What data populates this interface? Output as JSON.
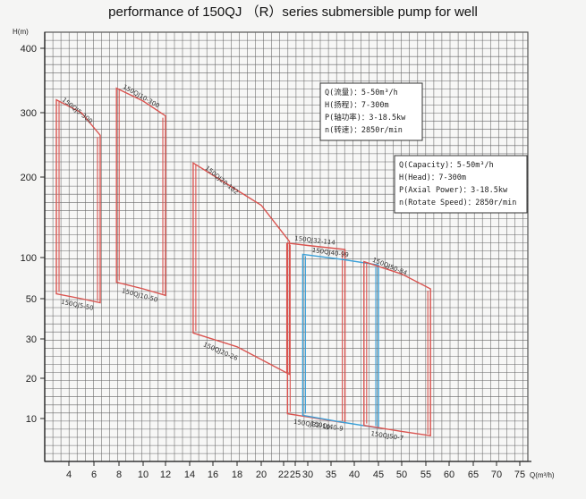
{
  "title": "performance of 150QJ （R）series submersible pump for well",
  "chart_data": {
    "type": "line",
    "ylabel": "H(m)",
    "xlabel": "Q(m³/h)",
    "x_ticks": [
      "4",
      "6",
      "8",
      "10",
      "12",
      "14",
      "16",
      "18",
      "20",
      "22",
      "25",
      "30",
      "35",
      "40",
      "45",
      "50",
      "55",
      "60",
      "65",
      "70",
      "75"
    ],
    "y_ticks": [
      "10",
      "20",
      "30",
      "50",
      "100",
      "200",
      "300",
      "400"
    ],
    "grid": true,
    "series": [
      {
        "name": "150QJ5-300",
        "color": "#d9534f",
        "points": [
          [
            3.0,
            320
          ],
          [
            5.0,
            300
          ],
          [
            6.5,
            265
          ],
          [
            6.5,
            48
          ],
          [
            5.0,
            50
          ],
          [
            3.0,
            56
          ]
        ],
        "label_upper": "150QJ5-300",
        "label_lower": "150QJ5-50"
      },
      {
        "name": "150QJ10-300",
        "color": "#d9534f",
        "points": [
          [
            7.8,
            338
          ],
          [
            10.0,
            318
          ],
          [
            12.0,
            295
          ],
          [
            12.0,
            54
          ],
          [
            10.0,
            62
          ],
          [
            7.8,
            70
          ]
        ],
        "label_upper": "150QJ10-300",
        "label_lower": "150QJ10-50"
      },
      {
        "name": "150QJ20-182",
        "color": "#d9534f",
        "points": [
          [
            14.3,
            222
          ],
          [
            20.0,
            165
          ],
          [
            23.5,
            120
          ],
          [
            23.5,
            21
          ],
          [
            18.0,
            28
          ],
          [
            14.3,
            33
          ]
        ],
        "label_upper": "150QJ20-182",
        "label_lower": "150QJ20-26"
      },
      {
        "name": "150QJ32-114",
        "color": "#d9534f",
        "points": [
          [
            23.0,
            118
          ],
          [
            30.0,
            115
          ],
          [
            38.0,
            110
          ],
          [
            38.0,
            9
          ],
          [
            30.0,
            10.4
          ],
          [
            23.0,
            11.2
          ]
        ],
        "label_upper": "150QJ32-114",
        "label_lower": "150QJ32-10"
      },
      {
        "name": "150QJ40-99",
        "color": "#3aa0d8",
        "points": [
          [
            28.0,
            104
          ],
          [
            37.0,
            98
          ],
          [
            45.0,
            91
          ],
          [
            45.0,
            7.8
          ],
          [
            37.0,
            9.2
          ],
          [
            28.0,
            10.8
          ]
        ],
        "label_upper": "150QJ40-99",
        "label_lower": "150QJ40-9"
      },
      {
        "name": "150QJ50-84",
        "color": "#d9534f",
        "points": [
          [
            42.0,
            95
          ],
          [
            50.0,
            80
          ],
          [
            56.0,
            62
          ],
          [
            56.0,
            6.0
          ],
          [
            50.0,
            7.0
          ],
          [
            42.0,
            8.4
          ]
        ],
        "label_upper": "150QJ50-84",
        "label_lower": "150QJ50-7"
      }
    ],
    "annotations": [
      [
        "Q(流量)：5-50m³/h",
        "H(扬程)：7-300m",
        "P(轴功率)：3-18.5kw",
        "n(转速)：2850r/min"
      ],
      [
        "Q(Capacity)：5-50m³/h",
        "H(Head)：7-300m",
        "P(Axial Power)：3-18.5kw",
        "n(Rotate Speed)：2850r/min"
      ]
    ]
  }
}
